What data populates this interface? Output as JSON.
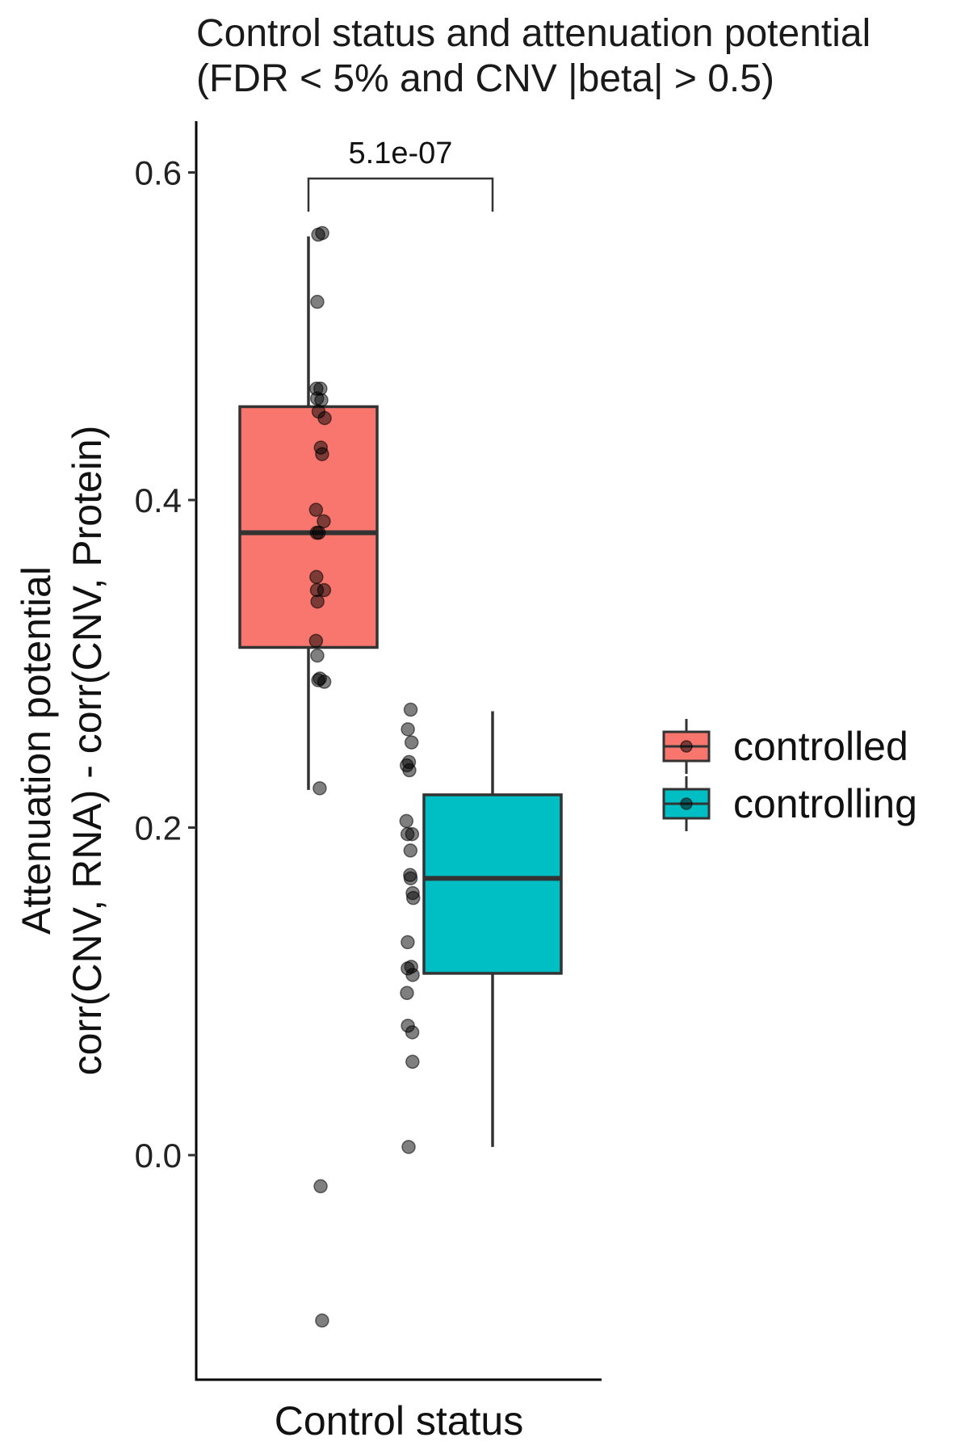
{
  "chart_data": {
    "type": "boxplot",
    "title": [
      "Control status and attenuation potential",
      "(FDR < 5% and CNV |beta| > 0.5)"
    ],
    "xlabel": "Control status",
    "ylabel": [
      "Attenuation potential",
      "corr(CNV, RNA) - corr(CNV, Protein)"
    ],
    "ylim": [
      -0.13,
      0.63
    ],
    "yticks": [
      0.0,
      0.2,
      0.4,
      0.6
    ],
    "ytick_labels": [
      "0.0",
      "0.2",
      "0.4",
      "0.6"
    ],
    "grid": false,
    "legend_position": "right",
    "significance": {
      "label": "5.1e-07",
      "between": [
        "controlled",
        "controlling"
      ]
    },
    "groups": [
      {
        "name": "controlled",
        "color": "#F8766D",
        "q1": 0.31,
        "median": 0.38,
        "q3": 0.457,
        "whisker_low": 0.223,
        "whisker_high": 0.561,
        "points": [
          [
            0.553,
            0.562
          ],
          [
            0.575,
            0.563
          ],
          [
            0.548,
            0.521
          ],
          [
            0.543,
            0.468
          ],
          [
            0.565,
            0.468
          ],
          [
            0.547,
            0.462
          ],
          [
            0.57,
            0.461
          ],
          [
            0.555,
            0.454
          ],
          [
            0.588,
            0.45
          ],
          [
            0.567,
            0.432
          ],
          [
            0.574,
            0.428
          ],
          [
            0.541,
            0.394
          ],
          [
            0.583,
            0.387
          ],
          [
            0.545,
            0.38
          ],
          [
            0.556,
            0.38
          ],
          [
            0.543,
            0.353
          ],
          [
            0.546,
            0.345
          ],
          [
            0.585,
            0.345
          ],
          [
            0.549,
            0.338
          ],
          [
            0.541,
            0.314
          ],
          [
            0.548,
            0.305
          ],
          [
            0.553,
            0.29
          ],
          [
            0.562,
            0.291
          ],
          [
            0.586,
            0.289
          ],
          [
            0.561,
            0.224
          ],
          [
            0.566,
            -0.019
          ],
          [
            0.574,
            -0.101
          ]
        ]
      },
      {
        "name": "controlling",
        "color": "#00BFC4",
        "q1": 0.111,
        "median": 0.169,
        "q3": 0.22,
        "whisker_low": 0.005,
        "whisker_high": 0.271,
        "points": [
          [
            1.055,
            0.272
          ],
          [
            1.04,
            0.26
          ],
          [
            1.06,
            0.252
          ],
          [
            1.034,
            0.238
          ],
          [
            1.046,
            0.24
          ],
          [
            1.048,
            0.235
          ],
          [
            1.032,
            0.204
          ],
          [
            1.038,
            0.196
          ],
          [
            1.063,
            0.196
          ],
          [
            1.054,
            0.186
          ],
          [
            1.052,
            0.171
          ],
          [
            1.055,
            0.169
          ],
          [
            1.066,
            0.16
          ],
          [
            1.069,
            0.157
          ],
          [
            1.039,
            0.13
          ],
          [
            1.039,
            0.114
          ],
          [
            1.058,
            0.115
          ],
          [
            1.066,
            0.11
          ],
          [
            1.035,
            0.099
          ],
          [
            1.04,
            0.079
          ],
          [
            1.064,
            0.075
          ],
          [
            1.065,
            0.057
          ],
          [
            1.044,
            0.005
          ]
        ]
      }
    ]
  }
}
